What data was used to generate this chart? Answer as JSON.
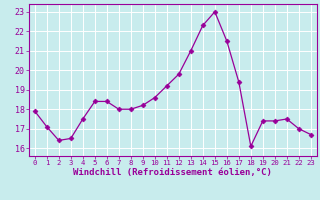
{
  "x": [
    0,
    1,
    2,
    3,
    4,
    5,
    6,
    7,
    8,
    9,
    10,
    11,
    12,
    13,
    14,
    15,
    16,
    17,
    18,
    19,
    20,
    21,
    22,
    23
  ],
  "y": [
    17.9,
    17.1,
    16.4,
    16.5,
    17.5,
    18.4,
    18.4,
    18.0,
    18.0,
    18.2,
    18.6,
    19.2,
    19.8,
    21.0,
    22.3,
    23.0,
    21.5,
    19.4,
    16.1,
    17.4,
    17.4,
    17.5,
    17.0,
    16.7
  ],
  "line_color": "#990099",
  "marker": "D",
  "markersize": 2.5,
  "linewidth": 0.9,
  "bg_color": "#c8eced",
  "grid_color": "#ffffff",
  "xlabel": "Windchill (Refroidissement éolien,°C)",
  "xlabel_color": "#990099",
  "xlabel_fontsize": 6.5,
  "tick_color": "#990099",
  "tick_fontsize": 6,
  "xlim": [
    -0.5,
    23.5
  ],
  "ylim": [
    15.6,
    23.4
  ],
  "yticks": [
    16,
    17,
    18,
    19,
    20,
    21,
    22,
    23
  ],
  "xticks": [
    0,
    1,
    2,
    3,
    4,
    5,
    6,
    7,
    8,
    9,
    10,
    11,
    12,
    13,
    14,
    15,
    16,
    17,
    18,
    19,
    20,
    21,
    22,
    23
  ]
}
